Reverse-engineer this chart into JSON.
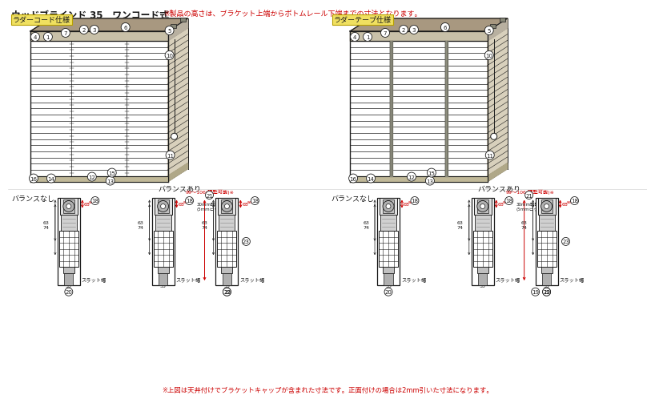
{
  "title": "ウッドブラインド 35　ワンコード式",
  "title_note": "※製品の高さは、ブラケット上端からボトムレール下端までの寸法となります。",
  "label_left": "ラダーコード仕様",
  "label_right": "ラダーテープ仕様",
  "balance_ari": "バランスあり",
  "balance_nashi": "バランスなし",
  "footer": "※上図は天井付けでブラケットキャップが含まれた寸法です。正面付けの場合は2mm引いた寸法になります。",
  "bg_color": "#ffffff",
  "line_color": "#1a1a1a",
  "red_color": "#cc0000",
  "label_bg": "#f0e060",
  "dim_99_106": "99～106(調整可能)※",
  "dim_30mm": "30mm調整可能\n(5mmピッチ)",
  "slat_width": "スラット幅",
  "note_20": "20",
  "note_19": "19"
}
